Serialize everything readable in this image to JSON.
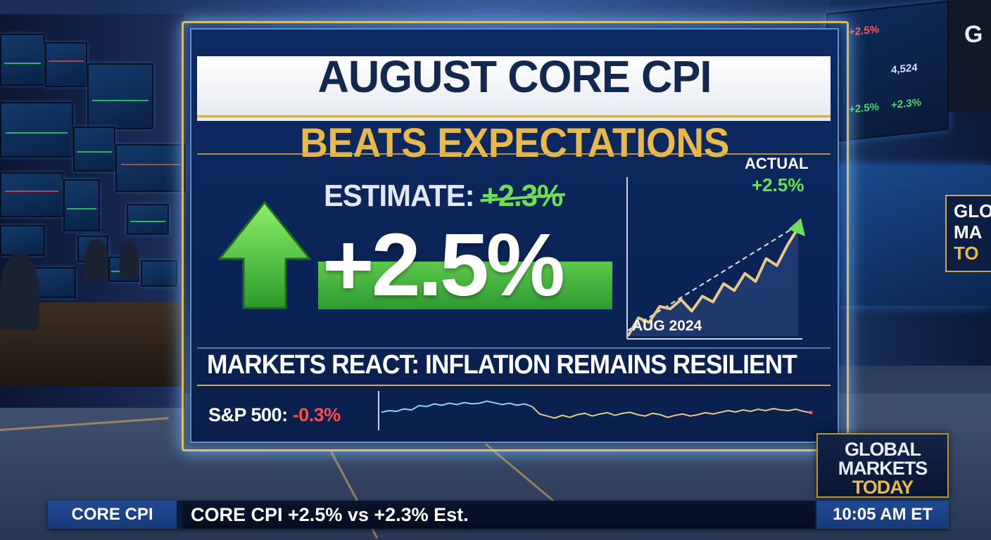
{
  "panel": {
    "title": "AUGUST CORE CPI",
    "subtitle": "BEATS EXPECTATIONS",
    "estimate_label": "ESTIMATE:",
    "estimate_value": "+2.3%",
    "actual_value": "+2.5%",
    "headline": "MARKETS REACT: INFLATION REMAINS RESILIENT",
    "sp_label": "S&P 500:",
    "sp_change": "-0.3%"
  },
  "chart_data": {
    "type": "line",
    "title": "ACTUAL",
    "value_label": "+2.5%",
    "xlabel": "AUG 2024",
    "series": [
      {
        "values": [
          0.0,
          0.16,
          0.12,
          0.26,
          0.24,
          0.32,
          0.22,
          0.35,
          0.3,
          0.46,
          0.4,
          0.55,
          0.48,
          0.68,
          0.62,
          0.8,
          0.95
        ]
      }
    ],
    "ylim": [
      0,
      1
    ],
    "grid": false,
    "colors": {
      "line": "#e6c88a",
      "arrow": "#6fdc5a",
      "trend": "#dfe6f2"
    }
  },
  "sparkline": {
    "values": [
      0.55,
      0.5,
      0.52,
      0.45,
      0.48,
      0.35,
      0.38,
      0.3,
      0.34,
      0.28,
      0.32,
      0.26,
      0.3,
      0.28,
      0.22,
      0.27,
      0.32,
      0.28,
      0.34,
      0.3,
      0.38,
      0.6,
      0.66,
      0.72,
      0.64,
      0.7,
      0.62,
      0.58,
      0.66,
      0.6,
      0.56,
      0.64,
      0.58,
      0.55,
      0.62,
      0.66,
      0.58,
      0.62,
      0.7,
      0.64,
      0.6,
      0.66,
      0.62,
      0.56,
      0.6,
      0.55,
      0.5,
      0.54,
      0.48,
      0.52,
      0.46,
      0.5,
      0.44,
      0.48,
      0.5,
      0.46,
      0.52,
      0.56
    ],
    "colors": {
      "up": "#8fd0ff",
      "down": "#e6c88a",
      "end": "#ff5a5a"
    }
  },
  "brand": {
    "line1": "GLOBAL",
    "line2": "MARKETS",
    "line3": "TODAY",
    "accent": "#e6b94a"
  },
  "ticker": {
    "tag": "CORE CPI",
    "text": "CORE CPI +2.5% vs +2.3% Est.",
    "time": "10:05 AM ET"
  },
  "background": {
    "corner_logo": "G",
    "screen_partial": {
      "line1": "GLO",
      "line2": "MA",
      "line3": "TO"
    },
    "right_screen": {
      "t1": "+2.5%",
      "t2": "+2.3%",
      "t3": "4,524"
    }
  }
}
